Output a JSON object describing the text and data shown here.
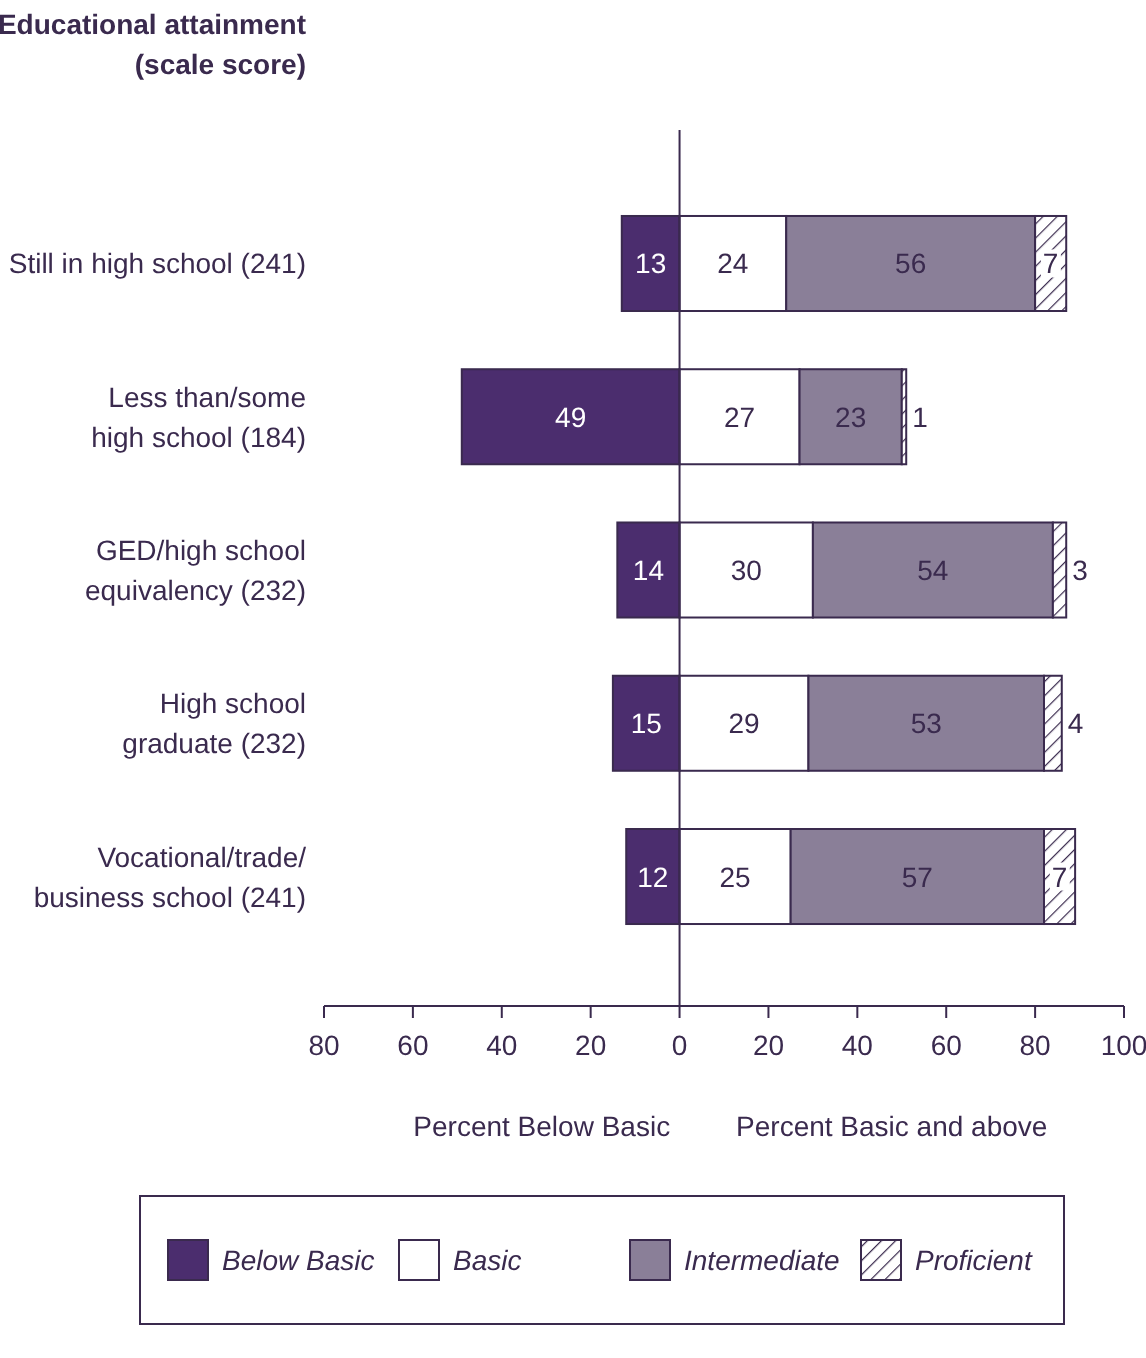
{
  "chart_data": {
    "type": "bar",
    "orientation": "horizontal",
    "title": "Educational attainment\n(scale score)",
    "categories": [
      "Still in high school (241)",
      "Less than/some\nhigh school (184)",
      "GED/high school\nequivalency (232)",
      "High school\ngraduate (232)",
      "Vocational/trade/\nbusiness school (241)"
    ],
    "series": [
      {
        "name": "Below Basic",
        "color": "#4b2d6e",
        "base": [
          -13,
          -49,
          -14,
          -15,
          -12
        ],
        "values": [
          13,
          49,
          14,
          15,
          12
        ],
        "value_labels": [
          "13",
          "49",
          "14",
          "15",
          "12"
        ]
      },
      {
        "name": "Basic",
        "color": "#ffffff",
        "base": [
          0,
          0,
          0,
          0,
          0
        ],
        "values": [
          24,
          27,
          30,
          29,
          25
        ],
        "value_labels": [
          "24",
          "27",
          "30",
          "29",
          "25"
        ]
      },
      {
        "name": "Intermediate",
        "color": "#8a7f98",
        "base": [
          24,
          27,
          30,
          29,
          25
        ],
        "values": [
          56,
          23,
          54,
          53,
          57
        ],
        "value_labels": [
          "56",
          "23",
          "54",
          "53",
          "57"
        ]
      },
      {
        "name": "Proficient",
        "color": "#3a2a4e",
        "base": [
          80,
          50,
          84,
          82,
          82
        ],
        "values": [
          7,
          1,
          3,
          4,
          7
        ],
        "value_labels": [
          "7",
          "1",
          "3",
          "4",
          "7"
        ]
      }
    ],
    "xlim": [
      -80,
      100
    ],
    "xticks": [
      {
        "value": -80,
        "label": "80"
      },
      {
        "value": -60,
        "label": "60"
      },
      {
        "value": -40,
        "label": "40"
      },
      {
        "value": -20,
        "label": "20"
      },
      0,
      20,
      40,
      60,
      80,
      100
    ],
    "annotations": [
      "Percent Below Basic",
      "Percent Basic and above"
    ],
    "ref_lines": [
      {
        "axis": "x",
        "value": 0
      }
    ],
    "legend": "bottom",
    "grid": false
  }
}
